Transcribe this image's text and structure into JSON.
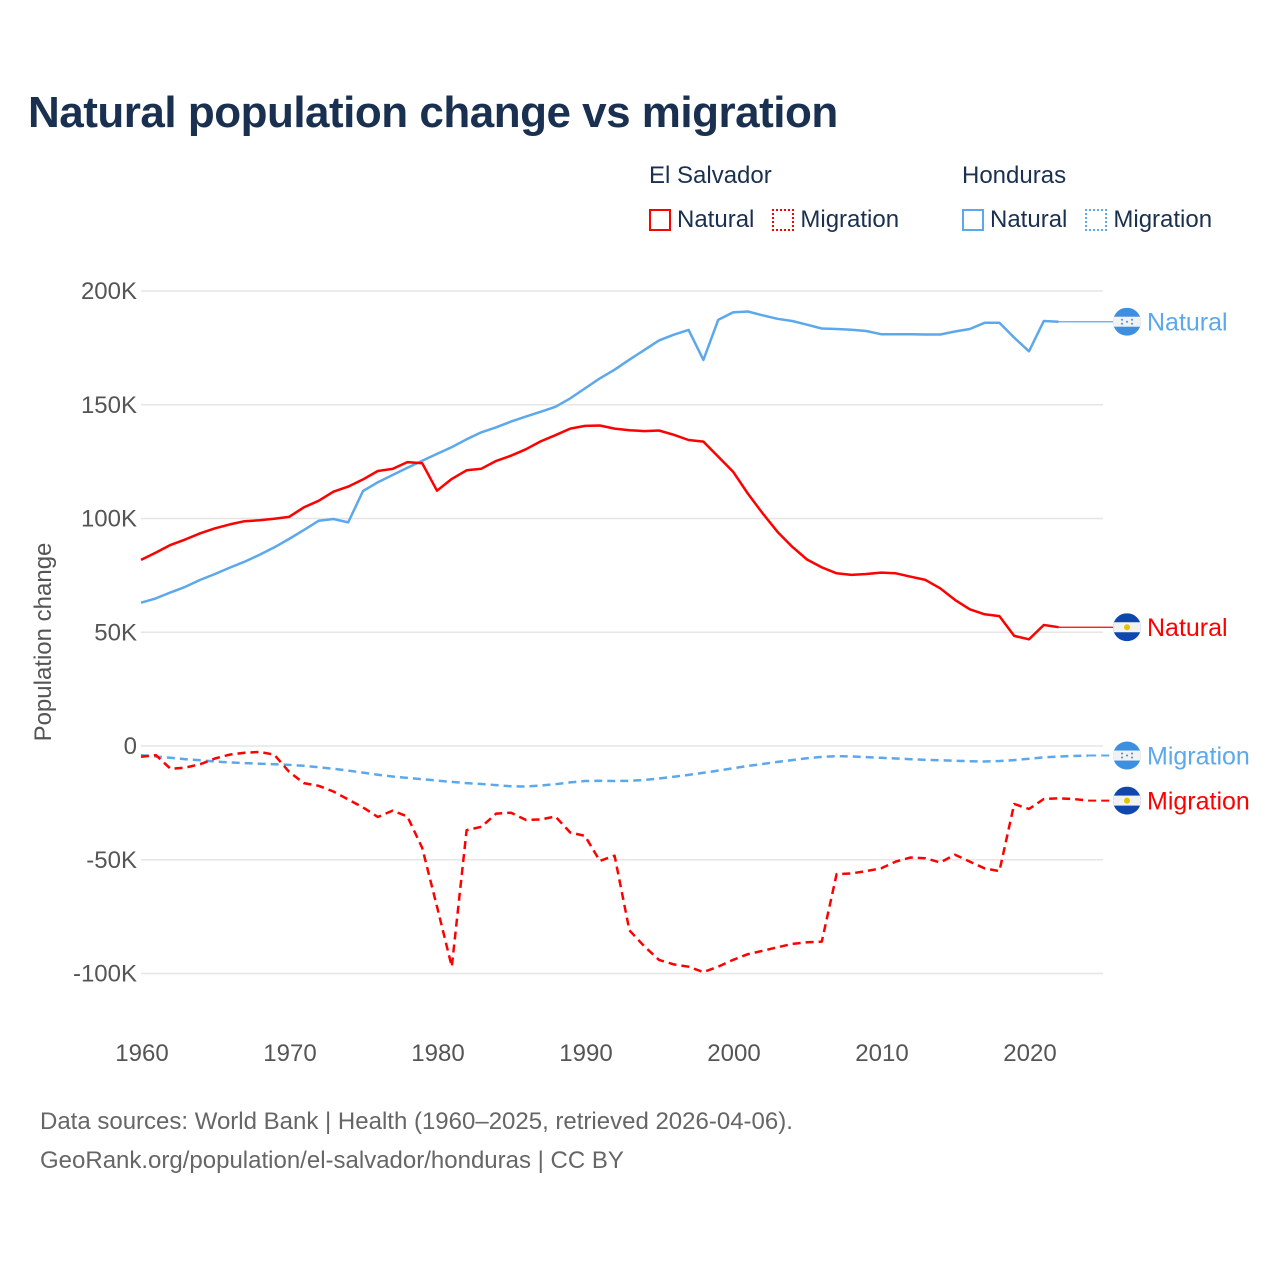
{
  "chart_data": {
    "type": "line",
    "title": "Natural population change vs migration",
    "ylabel": "Population change",
    "xlabel": "",
    "xlim": [
      1960,
      2025
    ],
    "ylim": [
      -100000,
      200000
    ],
    "x_ticks": [
      1960,
      1970,
      1980,
      1990,
      2000,
      2010,
      2020
    ],
    "x_tick_labels": [
      "1960",
      "1970",
      "1980",
      "1990",
      "2000",
      "2010",
      "2020"
    ],
    "y_ticks": [
      200000,
      150000,
      100000,
      50000,
      0,
      -50000,
      -100000
    ],
    "y_tick_labels": [
      "200K",
      "150K",
      "100K",
      "50K",
      "0",
      "-50K",
      "-100K"
    ],
    "grid": true,
    "legend_placement": "top-right",
    "legend": [
      {
        "group": "El Salvador",
        "items": [
          "Natural",
          "Migration"
        ]
      },
      {
        "group": "Honduras",
        "items": [
          "Natural",
          "Migration"
        ]
      }
    ],
    "series": [
      {
        "name": "Honduras Natural",
        "country": "Honduras",
        "kind": "Natural",
        "label": "Natural",
        "color": "#5ca8ec",
        "dashed": false,
        "start_year": 1960,
        "values": [
          63000,
          64900,
          67500,
          70000,
          73000,
          75600,
          78400,
          81000,
          84000,
          87300,
          91000,
          94900,
          99000,
          99800,
          98300,
          112100,
          115900,
          119100,
          122300,
          125400,
          128400,
          131400,
          134800,
          137900,
          140100,
          142600,
          144800,
          146900,
          149100,
          152800,
          157200,
          161600,
          165400,
          169800,
          174000,
          178300,
          180800,
          182900,
          169700,
          187300,
          190600,
          191000,
          189300,
          187800,
          186800,
          185200,
          183500,
          183300,
          183000,
          182400,
          181000,
          181000,
          181000,
          180900,
          180900,
          182200,
          183300,
          186000,
          186000,
          179500,
          173500,
          186800,
          186500
        ]
      },
      {
        "name": "El Salvador Natural",
        "country": "El Salvador",
        "kind": "Natural",
        "label": "Natural",
        "color": "#ff0000",
        "dashed": false,
        "start_year": 1960,
        "values": [
          81800,
          85000,
          88400,
          90800,
          93500,
          95700,
          97400,
          98800,
          99200,
          99900,
          100700,
          104900,
          107800,
          111800,
          114000,
          117200,
          120900,
          121800,
          124800,
          124300,
          112200,
          117400,
          121200,
          121900,
          125300,
          127600,
          130400,
          133900,
          136600,
          139500,
          140700,
          140900,
          139500,
          138800,
          138400,
          138700,
          136800,
          134500,
          133800,
          127200,
          120600,
          111000,
          102300,
          94200,
          87600,
          82000,
          78500,
          75900,
          75200,
          75600,
          76200,
          75900,
          74400,
          73000,
          69300,
          64200,
          60100,
          57900,
          57100,
          48400,
          46900,
          53200,
          52200
        ]
      },
      {
        "name": "Honduras Migration",
        "country": "Honduras",
        "kind": "Migration",
        "label": "Migration",
        "color": "#5ca8ec",
        "dashed": true,
        "start_year": 1960,
        "values": [
          -4000,
          -4600,
          -5200,
          -5800,
          -6300,
          -6800,
          -7200,
          -7500,
          -7800,
          -8000,
          -8300,
          -8700,
          -9300,
          -10000,
          -10800,
          -11700,
          -12600,
          -13400,
          -14000,
          -14600,
          -15200,
          -15800,
          -16300,
          -16700,
          -17200,
          -17700,
          -17800,
          -17400,
          -16800,
          -16000,
          -15400,
          -15300,
          -15400,
          -15300,
          -14900,
          -14300,
          -13500,
          -12700,
          -11800,
          -10800,
          -9800,
          -8800,
          -7900,
          -7000,
          -6200,
          -5400,
          -4800,
          -4500,
          -4600,
          -4900,
          -5200,
          -5500,
          -5800,
          -6100,
          -6300,
          -6500,
          -6700,
          -6800,
          -6600,
          -6200,
          -5600,
          -5000,
          -4600,
          -4400,
          -4200
        ]
      },
      {
        "name": "El Salvador Migration",
        "country": "El Salvador",
        "kind": "Migration",
        "label": "Migration",
        "color": "#ff0000",
        "dashed": true,
        "start_year": 1960,
        "values": [
          -4700,
          -4000,
          -10000,
          -9500,
          -8000,
          -5500,
          -3800,
          -3000,
          -2600,
          -3800,
          -11300,
          -16300,
          -17500,
          -20000,
          -23500,
          -27000,
          -31200,
          -28400,
          -31000,
          -44800,
          -70600,
          -97000,
          -37000,
          -35500,
          -29700,
          -29300,
          -32500,
          -32300,
          -31000,
          -38000,
          -39500,
          -50500,
          -48200,
          -81000,
          -88000,
          -94000,
          -96000,
          -97000,
          -99400,
          -97000,
          -94000,
          -91500,
          -90000,
          -88500,
          -87000,
          -86300,
          -86000,
          -56300,
          -56000,
          -55000,
          -53800,
          -50800,
          -49000,
          -49300,
          -51200,
          -47800,
          -50800,
          -53800,
          -55000,
          -25500,
          -27700,
          -23300,
          -23000,
          -23300,
          -24000
        ]
      }
    ]
  },
  "footer": {
    "line1": "Data sources: World Bank | Health (1960–2025, retrieved 2026-04-06).",
    "line2": "GeoRank.org/population/el-salvador/honduras | CC BY"
  },
  "colors": {
    "el_salvador": "#ff0000",
    "honduras": "#5ca8ec",
    "title": "#1a3050"
  }
}
